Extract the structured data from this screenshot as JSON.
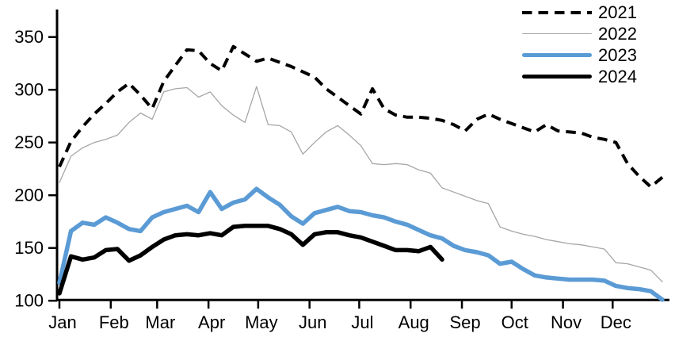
{
  "chart_data": {
    "type": "line",
    "title": "",
    "xlabel": "",
    "ylabel": "",
    "grid": false,
    "legend_position": "top-right",
    "x_axis": {
      "months": [
        "Jan",
        "Feb",
        "Mar",
        "Apr",
        "May",
        "Jun",
        "Jul",
        "Aug",
        "Sep",
        "Oct",
        "Nov",
        "Dec"
      ],
      "month_start_days": [
        0,
        31,
        59,
        90,
        120,
        151,
        181,
        212,
        243,
        273,
        304,
        334
      ],
      "weeks": 52
    },
    "y_axis": {
      "ticks": [
        350,
        300,
        250,
        200,
        150,
        100
      ],
      "min": 100,
      "max": 350
    },
    "series": [
      {
        "name": "2021",
        "color": "#000000",
        "style": "dashed",
        "width": 4,
        "values": [
          227,
          251,
          265,
          277,
          287,
          298,
          306,
          295,
          282,
          308,
          323,
          338,
          337,
          325,
          318,
          341,
          334,
          327,
          330,
          326,
          322,
          317,
          312,
          301,
          293,
          285,
          277,
          301,
          282,
          276,
          274,
          274,
          273,
          271,
          267,
          261,
          272,
          277,
          272,
          268,
          264,
          260,
          267,
          261,
          260,
          259,
          255,
          253,
          250,
          230,
          218,
          208,
          217
        ]
      },
      {
        "name": "2022",
        "color": "#a6a6a6",
        "style": "solid",
        "width": 1.3,
        "values": [
          212,
          237,
          245,
          250,
          253,
          257,
          269,
          278,
          272,
          298,
          301,
          302,
          293,
          298,
          285,
          276,
          269,
          303,
          267,
          266,
          260,
          239,
          250,
          260,
          266,
          257,
          247,
          230,
          229,
          230,
          229,
          224,
          221,
          207,
          203,
          199,
          195,
          192,
          170,
          166,
          163,
          161,
          158,
          156,
          154,
          153,
          151,
          149,
          136,
          135,
          132,
          129,
          118
        ]
      },
      {
        "name": "2023",
        "color": "#5b9bd5",
        "style": "solid",
        "width": 5.5,
        "values": [
          117,
          166,
          174,
          172,
          179,
          174,
          168,
          166,
          179,
          184,
          187,
          190,
          184,
          203,
          187,
          193,
          196,
          206,
          198,
          191,
          180,
          173,
          183,
          186,
          189,
          185,
          184,
          181,
          179,
          175,
          172,
          167,
          162,
          159,
          152,
          148,
          146,
          143,
          135,
          137,
          130,
          124,
          122,
          121,
          120,
          120,
          120,
          119,
          114,
          112,
          111,
          109,
          101
        ]
      },
      {
        "name": "2024",
        "color": "#000000",
        "style": "solid",
        "width": 5.5,
        "values": [
          107,
          142,
          139,
          141,
          148,
          149,
          138,
          143,
          151,
          158,
          162,
          163,
          162,
          164,
          162,
          170,
          171,
          171,
          171,
          168,
          163,
          153,
          163,
          165,
          165,
          162,
          160,
          156,
          152,
          148,
          148,
          147,
          151,
          139
        ]
      }
    ]
  }
}
